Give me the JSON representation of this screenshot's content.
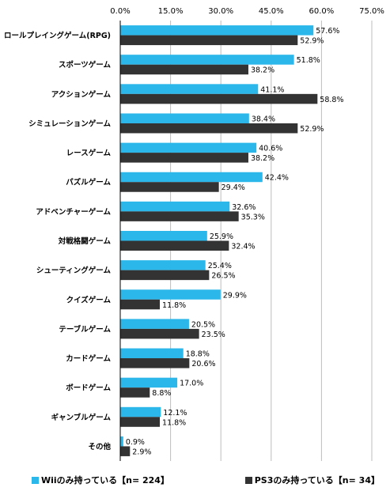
{
  "chart_data": {
    "type": "bar",
    "orientation": "horizontal",
    "xlim": [
      0,
      75
    ],
    "ticks": [
      "0.0%",
      "15.0%",
      "30.0%",
      "45.0%",
      "60.0%",
      "75.0%"
    ],
    "tick_values": [
      0,
      15,
      30,
      45,
      60,
      75
    ],
    "grid": true,
    "legend_position": "bottom",
    "categories": [
      "ロールプレイングゲーム(RPG)",
      "スポーツゲーム",
      "アクションゲーム",
      "シミュレーションゲーム",
      "レースゲーム",
      "パズルゲーム",
      "アドベンチャーゲーム",
      "対戦格闘ゲーム",
      "シューティングゲーム",
      "クイズゲーム",
      "テーブルゲーム",
      "カードゲーム",
      "ボードゲーム",
      "ギャンブルゲーム",
      "その他"
    ],
    "series": [
      {
        "name": "Wiiのみ持っている【n= 224】",
        "color": "#2bb7ea",
        "values": [
          57.6,
          51.8,
          41.1,
          38.4,
          40.6,
          42.4,
          32.6,
          25.9,
          25.4,
          29.9,
          20.5,
          18.8,
          17.0,
          12.1,
          0.9
        ],
        "labels": [
          "57.6%",
          "51.8%",
          "41.1%",
          "38.4%",
          "40.6%",
          "42.4%",
          "32.6%",
          "25.9%",
          "25.4%",
          "29.9%",
          "20.5%",
          "18.8%",
          "17.0%",
          "12.1%",
          "0.9%"
        ]
      },
      {
        "name": "PS3のみ持っている【n= 34】",
        "color": "#333333",
        "values": [
          52.9,
          38.2,
          58.8,
          52.9,
          38.2,
          29.4,
          35.3,
          32.4,
          26.5,
          11.8,
          23.5,
          20.6,
          8.8,
          11.8,
          2.9
        ],
        "labels": [
          "52.9%",
          "38.2%",
          "58.8%",
          "52.9%",
          "38.2%",
          "29.4%",
          "35.3%",
          "32.4%",
          "26.5%",
          "11.8%",
          "23.5%",
          "20.6%",
          "8.8%",
          "11.8%",
          "2.9%"
        ]
      }
    ]
  }
}
